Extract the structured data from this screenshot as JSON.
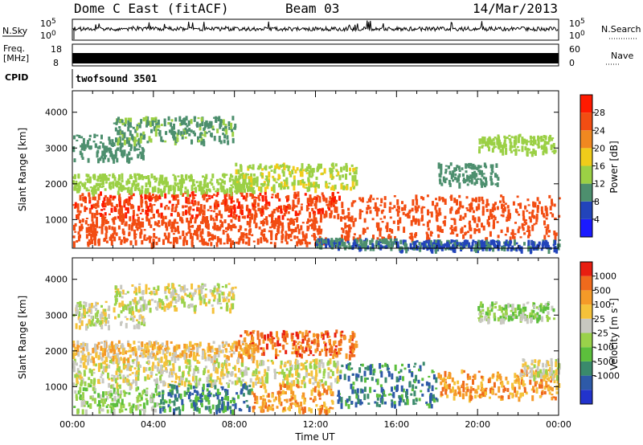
{
  "header": {
    "title": "Dome C East (fitACF)",
    "beam": "Beam 03",
    "date": "14/Mar/2013"
  },
  "top_panels": {
    "nsky_label": "N.Sky",
    "nsky_tick_hi": "10^5",
    "nsky_tick_lo": "10^0",
    "nsearch_label": "N.Search",
    "nsearch_tick_hi": "10^5",
    "nsearch_tick_lo": "10^0",
    "freq_label_1": "Freq.",
    "freq_label_2": "[MHz]",
    "freq_tick_hi": "18",
    "freq_tick_lo": "8",
    "nave_label": "Nave",
    "nave_tick_hi": "60",
    "nave_tick_lo": "0",
    "cpid_label": "CPID",
    "cpid_value": "twofsound 3501"
  },
  "chart_data": [
    {
      "type": "heatmap",
      "panel": "power",
      "ylabel": "Slant Range [km]",
      "xlabel": "Time UT",
      "x_ticks": [
        "00:00",
        "04:00",
        "08:00",
        "12:00",
        "16:00",
        "20:00",
        "00:00"
      ],
      "y_ticks": [
        1000,
        2000,
        3000,
        4000
      ],
      "ylim": [
        200,
        4600
      ],
      "xlim_hours": [
        0,
        24
      ],
      "colorbar": {
        "label": "Power [dB]",
        "ticks": [
          4,
          8,
          12,
          16,
          20,
          24,
          28
        ],
        "range": [
          0,
          32
        ],
        "colors": [
          "#1a1aff",
          "#2244bb",
          "#4d8f6e",
          "#9bd045",
          "#f0cc1a",
          "#f08820",
          "#f24d12",
          "#ff1a00"
        ]
      },
      "regions": [
        {
          "t0": 0,
          "t1": 13.2,
          "r0": 1100,
          "r1": 1800,
          "level": 27
        },
        {
          "t0": 0,
          "t1": 12.5,
          "r0": 350,
          "r1": 1100,
          "level": 26
        },
        {
          "t0": 13.2,
          "t1": 24,
          "r0": 500,
          "r1": 1700,
          "level": 26
        },
        {
          "t0": 0,
          "t1": 9,
          "r0": 1800,
          "r1": 2300,
          "level": 14
        },
        {
          "t0": 0,
          "t1": 3.5,
          "r0": 2700,
          "r1": 3400,
          "level": 10
        },
        {
          "t0": 2,
          "t1": 8,
          "r0": 3200,
          "r1": 3900,
          "level": 11
        },
        {
          "t0": 8,
          "t1": 14,
          "r0": 1900,
          "r1": 2600,
          "level": 15
        },
        {
          "t0": 12,
          "t1": 16,
          "r0": 250,
          "r1": 500,
          "level": 8
        },
        {
          "t0": 16,
          "t1": 24,
          "r0": 200,
          "r1": 450,
          "level": 7
        },
        {
          "t0": 20,
          "t1": 23.8,
          "r0": 2900,
          "r1": 3400,
          "level": 13
        },
        {
          "t0": 18,
          "t1": 21,
          "r0": 2000,
          "r1": 2600,
          "level": 9
        }
      ]
    },
    {
      "type": "heatmap",
      "panel": "velocity",
      "ylabel": "Slant Range [km]",
      "xlabel": "Time UT",
      "x_ticks": [
        "00:00",
        "04:00",
        "08:00",
        "12:00",
        "16:00",
        "20:00",
        "00:00"
      ],
      "y_ticks": [
        1000,
        2000,
        3000,
        4000
      ],
      "ylim": [
        200,
        4600
      ],
      "xlim_hours": [
        0,
        24
      ],
      "colorbar": {
        "label": "Velocity [m s^-1]",
        "ticks": [
          "1000",
          "500",
          "100",
          "25",
          "-25",
          "-100",
          "-500",
          "-1000"
        ],
        "colors": [
          "#2233cc",
          "#2e5aa8",
          "#3a8a6c",
          "#5cbf3c",
          "#9ad24a",
          "#c8c8c0",
          "#f5c23a",
          "#f59a28",
          "#ef6a1c",
          "#e81e10"
        ]
      },
      "regions": [
        {
          "t0": 0,
          "t1": 13.2,
          "r0": 1100,
          "r1": 1800,
          "level": 5
        },
        {
          "t0": 0,
          "t1": 4.2,
          "r0": 350,
          "r1": 1100,
          "level": 4
        },
        {
          "t0": 4.2,
          "t1": 8.8,
          "r0": 350,
          "r1": 1100,
          "level": 2
        },
        {
          "t0": 8.8,
          "t1": 12.8,
          "r0": 350,
          "r1": 1100,
          "level": 7
        },
        {
          "t0": 13,
          "t1": 18,
          "r0": 500,
          "r1": 1700,
          "level": 2
        },
        {
          "t0": 18,
          "t1": 24,
          "r0": 700,
          "r1": 1500,
          "level": 7
        },
        {
          "t0": 0,
          "t1": 9,
          "r0": 1800,
          "r1": 2300,
          "level": 6
        },
        {
          "t0": 2,
          "t1": 8,
          "r0": 3200,
          "r1": 3900,
          "level": 5
        },
        {
          "t0": 0,
          "t1": 3.5,
          "r0": 2700,
          "r1": 3400,
          "level": 5
        },
        {
          "t0": 8,
          "t1": 14,
          "r0": 1900,
          "r1": 2600,
          "level": 8
        },
        {
          "t0": 20,
          "t1": 23.8,
          "r0": 2900,
          "r1": 3400,
          "level": 4
        },
        {
          "t0": 22,
          "t1": 24,
          "r0": 1300,
          "r1": 1800,
          "level": 5
        }
      ]
    }
  ]
}
